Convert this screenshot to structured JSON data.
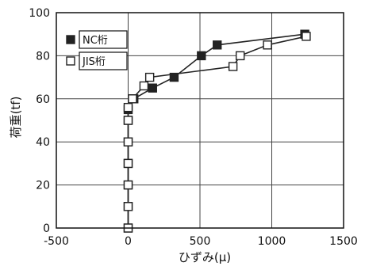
{
  "chart_data": {
    "type": "line",
    "xlabel": "ひずみ(μ)",
    "ylabel": "荷重(tf)",
    "xlim": [
      -500,
      1500
    ],
    "ylim": [
      0,
      100
    ],
    "xticks": [
      "-500",
      "0",
      "500",
      "1000",
      "1500"
    ],
    "yticks": [
      "0",
      "20",
      "40",
      "60",
      "80",
      "100"
    ],
    "grid": true,
    "legend_position": "top-left",
    "series": [
      {
        "name": "NC桁",
        "marker": "filled-square",
        "color": "#222222",
        "x": [
          0,
          0,
          0,
          0,
          0,
          0,
          0,
          40,
          170,
          320,
          510,
          620,
          1230
        ],
        "y": [
          0,
          10,
          20,
          30,
          40,
          50,
          55,
          60,
          65,
          70,
          80,
          85,
          90
        ]
      },
      {
        "name": "JIS桁",
        "marker": "open-square",
        "color": "#222222",
        "x": [
          0,
          0,
          0,
          0,
          0,
          0,
          0,
          30,
          110,
          150,
          730,
          780,
          970,
          1240
        ],
        "y": [
          0,
          10,
          20,
          30,
          40,
          50,
          56,
          60,
          66,
          70,
          75,
          80,
          85,
          89
        ]
      }
    ]
  }
}
